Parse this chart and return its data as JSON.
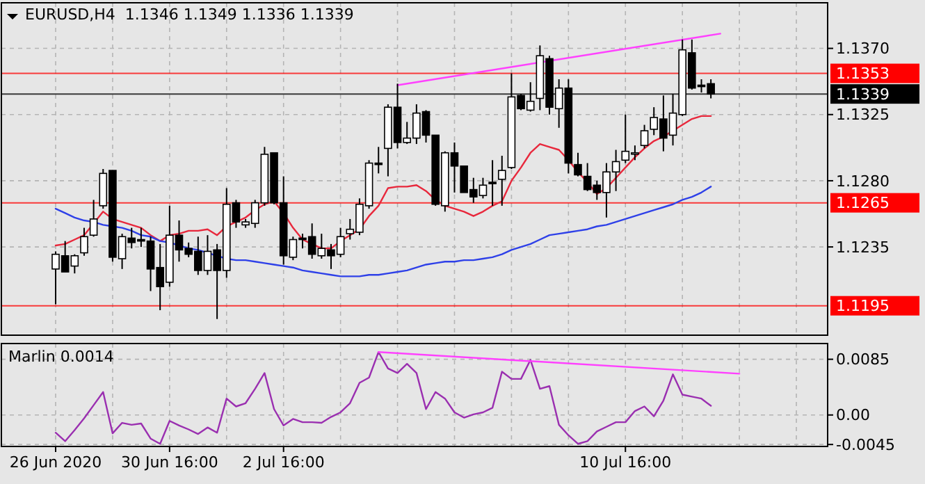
{
  "chart_data": [
    {
      "type": "candlestick",
      "title": "EURUSD,H4  1.1346 1.1349 1.1336 1.1339",
      "categories": [
        null,
        null,
        null,
        null,
        null,
        null,
        null,
        null,
        null,
        null,
        null,
        null,
        null,
        null,
        null,
        null,
        null,
        null,
        null,
        null,
        null,
        null,
        null,
        null,
        null,
        null,
        null,
        null,
        null,
        null,
        null,
        null,
        null,
        null,
        null,
        null,
        null,
        null,
        null,
        null,
        null,
        null,
        null,
        null,
        null,
        null,
        null,
        null,
        null,
        null,
        null,
        null,
        null,
        null,
        null,
        null,
        null,
        null,
        null,
        null,
        null,
        null,
        null,
        null,
        null,
        null,
        null,
        null,
        null,
        null,
        null,
        null,
        null,
        null,
        null,
        null,
        null,
        null,
        null,
        null,
        null,
        null
      ],
      "ohlc": [
        [
          1.122,
          1.1232,
          1.1196,
          1.123
        ],
        [
          1.1229,
          1.1239,
          1.1218,
          1.1218
        ],
        [
          1.1222,
          1.123,
          1.1217,
          1.1229
        ],
        [
          1.1231,
          1.1248,
          1.1229,
          1.1242
        ],
        [
          1.1243,
          1.1267,
          1.1242,
          1.1254
        ],
        [
          1.1263,
          1.1288,
          1.1261,
          1.1285
        ],
        [
          1.1287,
          1.1287,
          1.1225,
          1.1228
        ],
        [
          1.1227,
          1.1244,
          1.122,
          1.1242
        ],
        [
          1.1241,
          1.1248,
          1.1234,
          1.1238
        ],
        [
          1.124,
          1.1248,
          1.1235,
          1.1239
        ],
        [
          1.1239,
          1.1242,
          1.1205,
          1.122
        ],
        [
          1.1221,
          1.1237,
          1.1192,
          1.1208
        ],
        [
          1.1211,
          1.1263,
          1.1208,
          1.1243
        ],
        [
          1.1243,
          1.1253,
          1.1225,
          1.1233
        ],
        [
          1.1234,
          1.1238,
          1.1228,
          1.123
        ],
        [
          1.1232,
          1.1242,
          1.1216,
          1.1219
        ],
        [
          1.1219,
          1.1243,
          1.1216,
          1.1232
        ],
        [
          1.1233,
          1.1237,
          1.1186,
          1.1219
        ],
        [
          1.1219,
          1.1275,
          1.1214,
          1.1264
        ],
        [
          1.1265,
          1.1267,
          1.1248,
          1.1252
        ],
        [
          1.125,
          1.1254,
          1.1248,
          1.1252
        ],
        [
          1.1251,
          1.1267,
          1.1248,
          1.1265
        ],
        [
          1.1265,
          1.1303,
          1.1263,
          1.1298
        ],
        [
          1.1299,
          1.1299,
          1.1264,
          1.1265
        ],
        [
          1.1265,
          1.1283,
          1.1223,
          1.1229
        ],
        [
          1.1228,
          1.1242,
          1.1226,
          1.124
        ],
        [
          1.1241,
          1.1244,
          1.1234,
          1.124
        ],
        [
          1.1242,
          1.1251,
          1.1227,
          1.123
        ],
        [
          1.1229,
          1.1244,
          1.1227,
          1.1234
        ],
        [
          1.1233,
          1.1237,
          1.122,
          1.1229
        ],
        [
          1.123,
          1.1248,
          1.1228,
          1.1242
        ],
        [
          1.1244,
          1.1254,
          1.124,
          1.1247
        ],
        [
          1.1245,
          1.1268,
          1.1243,
          1.1264
        ],
        [
          1.1263,
          1.1294,
          1.1261,
          1.1292
        ],
        [
          1.1292,
          1.1303,
          1.1285,
          1.1291
        ],
        [
          1.1302,
          1.1332,
          1.1283,
          1.133
        ],
        [
          1.133,
          1.1346,
          1.1302,
          1.1306
        ],
        [
          1.1306,
          1.132,
          1.1305,
          1.1309
        ],
        [
          1.1309,
          1.1332,
          1.1305,
          1.1326
        ],
        [
          1.1327,
          1.1328,
          1.1306,
          1.1311
        ],
        [
          1.1311,
          1.1311,
          1.1263,
          1.1264
        ],
        [
          1.1263,
          1.13,
          1.1259,
          1.1299
        ],
        [
          1.1299,
          1.1306,
          1.1272,
          1.129
        ],
        [
          1.129,
          1.129,
          1.1272,
          1.1272
        ],
        [
          1.1274,
          1.1282,
          1.1265,
          1.1269
        ],
        [
          1.127,
          1.1282,
          1.1268,
          1.1277
        ],
        [
          1.1279,
          1.1294,
          1.1263,
          1.1278
        ],
        [
          1.1281,
          1.1297,
          1.1263,
          1.1287
        ],
        [
          1.1289,
          1.1353,
          1.1288,
          1.1337
        ],
        [
          1.1338,
          1.1339,
          1.1328,
          1.1329
        ],
        [
          1.1328,
          1.1347,
          1.1327,
          1.1334
        ],
        [
          1.1336,
          1.1372,
          1.1328,
          1.1365
        ],
        [
          1.1363,
          1.1365,
          1.1325,
          1.133
        ],
        [
          1.1329,
          1.1349,
          1.1316,
          1.1343
        ],
        [
          1.1343,
          1.1349,
          1.1285,
          1.1292
        ],
        [
          1.1291,
          1.1299,
          1.1283,
          1.1284
        ],
        [
          1.1283,
          1.1292,
          1.1273,
          1.1274
        ],
        [
          1.1277,
          1.128,
          1.1267,
          1.1272
        ],
        [
          1.1272,
          1.1292,
          1.1255,
          1.1286
        ],
        [
          1.1286,
          1.1301,
          1.1273,
          1.1293
        ],
        [
          1.1294,
          1.1325,
          1.1292,
          1.13
        ],
        [
          1.1299,
          1.1304,
          1.1294,
          1.1299
        ],
        [
          1.1304,
          1.1318,
          1.1302,
          1.1314
        ],
        [
          1.1315,
          1.133,
          1.1311,
          1.1323
        ],
        [
          1.1322,
          1.1338,
          1.13,
          1.1309
        ],
        [
          1.1311,
          1.1339,
          1.1304,
          1.1326
        ],
        [
          1.1325,
          1.1376,
          1.1324,
          1.1369
        ],
        [
          1.1367,
          1.1376,
          1.1342,
          1.1343
        ],
        [
          1.1345,
          1.1349,
          1.134,
          1.1344
        ],
        [
          1.1346,
          1.1349,
          1.1336,
          1.1339
        ],
        null,
        null,
        null,
        null,
        null,
        null,
        null,
        null,
        null,
        null,
        null,
        null
      ],
      "series": [
        {
          "type": "line",
          "color": "#e8283c",
          "values": [
            1.1236,
            1.1237,
            1.124,
            1.1243,
            1.1251,
            1.1259,
            1.1254,
            1.1252,
            1.125,
            1.1248,
            1.1243,
            1.1239,
            1.1243,
            1.1244,
            1.1246,
            1.1246,
            1.1247,
            1.1243,
            1.1249,
            1.1252,
            1.1255,
            1.126,
            1.1264,
            1.1266,
            1.1258,
            1.1248,
            1.124,
            1.1237,
            1.1234,
            1.1234,
            1.1239,
            1.1243,
            1.1247,
            1.1256,
            1.1263,
            1.1275,
            1.1276,
            1.1276,
            1.1277,
            1.1273,
            1.1267,
            1.1263,
            1.1261,
            1.1259,
            1.1256,
            1.1259,
            1.1263,
            1.1266,
            1.128,
            1.1289,
            1.1299,
            1.1305,
            1.1303,
            1.1301,
            1.1294,
            1.1286,
            1.1279,
            1.1271,
            1.1275,
            1.1282,
            1.1289,
            1.1296,
            1.1302,
            1.1307,
            1.131,
            1.1314,
            1.1318,
            1.1322,
            1.1324,
            1.1324,
            null,
            null,
            null,
            null,
            null,
            null,
            null,
            null,
            null,
            null,
            null,
            null
          ]
        },
        {
          "type": "line",
          "color": "#2e40e8",
          "values": [
            1.1261,
            1.1258,
            1.1255,
            1.1253,
            1.1252,
            1.125,
            1.1249,
            1.1248,
            1.1246,
            1.1243,
            1.1242,
            1.1239,
            1.1238,
            1.1236,
            1.1234,
            1.1233,
            1.1231,
            1.1229,
            1.1227,
            1.1226,
            1.1226,
            1.1225,
            1.1224,
            1.1223,
            1.1222,
            1.1221,
            1.1219,
            1.1218,
            1.1217,
            1.1216,
            1.1215,
            1.1215,
            1.1215,
            1.1216,
            1.1216,
            1.1217,
            1.1218,
            1.1219,
            1.1221,
            1.1223,
            1.1224,
            1.1225,
            1.1225,
            1.1226,
            1.1226,
            1.1227,
            1.1228,
            1.123,
            1.1233,
            1.1235,
            1.1237,
            1.124,
            1.1243,
            1.1244,
            1.1245,
            1.1246,
            1.1247,
            1.1249,
            1.125,
            1.1252,
            1.1254,
            1.1256,
            1.1258,
            1.126,
            1.1262,
            1.1264,
            1.1267,
            1.1269,
            1.1272,
            1.1276,
            null,
            null,
            null,
            null,
            null,
            null,
            null,
            null,
            null,
            null,
            null,
            null
          ]
        },
        {
          "type": "line",
          "color": "#ff40ff",
          "values": [
            null,
            null,
            null,
            null,
            null,
            null,
            null,
            null,
            null,
            null,
            null,
            null,
            null,
            null,
            null,
            null,
            null,
            null,
            null,
            null,
            null,
            null,
            null,
            null,
            null,
            null,
            null,
            null,
            null,
            null,
            null,
            null,
            null,
            null,
            null,
            null,
            1.1345,
            null,
            null,
            null,
            null,
            null,
            null,
            null,
            null,
            null,
            null,
            null,
            null,
            null,
            null,
            null,
            null,
            null,
            null,
            null,
            null,
            null,
            null,
            null,
            null,
            null,
            null,
            null,
            null,
            null,
            null,
            null,
            null,
            null,
            1.138,
            null,
            null,
            null,
            null,
            null,
            null,
            null,
            null,
            null,
            null,
            null
          ]
        }
      ],
      "ylim": [
        1.1175,
        1.1401
      ],
      "yticks": [
        {
          "value": 1.137,
          "label": "1.1370"
        },
        1.1325,
        {
          "value": 1.128,
          "label": "1.1280"
        },
        1.1235
      ],
      "ref_lines": [
        {
          "axis": "y",
          "value": 1.1353,
          "label": "1.1353",
          "color": "#ff0000"
        },
        {
          "axis": "y",
          "value": 1.1265,
          "label": "1.1265",
          "color": "#ff0000"
        },
        {
          "axis": "y",
          "value": 1.1195,
          "label": "1.1195",
          "color": "#ff0000"
        },
        {
          "axis": "y",
          "value": 1.1339,
          "label": "1.1339",
          "color": "#000000"
        }
      ],
      "grid": true
    },
    {
      "type": "line",
      "title": "Marlin 0.0014",
      "categories": [
        "26 Jun 2020",
        null,
        null,
        null,
        null,
        null,
        null,
        null,
        null,
        null,
        null,
        null,
        "30 Jun 16:00",
        null,
        null,
        null,
        null,
        null,
        null,
        null,
        null,
        null,
        null,
        null,
        "2 Jul 16:00",
        null,
        null,
        null,
        null,
        null,
        null,
        null,
        null,
        null,
        null,
        null,
        null,
        null,
        null,
        null,
        null,
        null,
        null,
        null,
        null,
        null,
        null,
        null,
        null,
        null,
        null,
        null,
        null,
        null,
        null,
        null,
        null,
        null,
        null,
        null,
        "10 Jul 16:00",
        null,
        null,
        null,
        null,
        null,
        null,
        null,
        null,
        null,
        null,
        null,
        null,
        null,
        null,
        null,
        null,
        null,
        null,
        null,
        null,
        null
      ],
      "series": [
        {
          "color": "#9a2fb0",
          "values": [
            -0.0027,
            -0.004,
            -0.0023,
            -0.0005,
            0.0015,
            0.0035,
            -0.0028,
            -0.0012,
            -0.0015,
            -0.0013,
            -0.0036,
            -0.0044,
            -0.0009,
            -0.0016,
            -0.0022,
            -0.0029,
            -0.0019,
            -0.0027,
            0.0025,
            0.0013,
            0.0018,
            0.004,
            0.0064,
            0.0009,
            -0.0016,
            -0.0006,
            -0.0011,
            -0.0011,
            -0.0012,
            -0.0003,
            0.0004,
            0.0018,
            0.0049,
            0.0057,
            0.0096,
            0.0071,
            0.0064,
            0.0078,
            0.0064,
            0.0009,
            0.0035,
            0.0025,
            0.0004,
            -0.0004,
            0.0001,
            0.0004,
            0.0011,
            0.0066,
            0.0055,
            0.0055,
            0.0084,
            0.004,
            0.0044,
            -0.0015,
            -0.0031,
            -0.0044,
            -0.004,
            -0.0025,
            -0.0018,
            -0.0011,
            -0.0011,
            0.0006,
            0.0013,
            -0.0002,
            0.0022,
            0.0062,
            0.0031,
            0.0028,
            0.0025,
            0.0014,
            null,
            null,
            null,
            null,
            null,
            null,
            null,
            null,
            null,
            null,
            null,
            null
          ]
        },
        {
          "color": "#ff40ff",
          "values": [
            null,
            null,
            null,
            null,
            null,
            null,
            null,
            null,
            null,
            null,
            null,
            null,
            null,
            null,
            null,
            null,
            null,
            null,
            null,
            null,
            null,
            null,
            null,
            null,
            null,
            null,
            null,
            null,
            null,
            null,
            null,
            null,
            null,
            null,
            0.0096,
            null,
            null,
            null,
            null,
            null,
            null,
            null,
            null,
            null,
            null,
            null,
            null,
            null,
            null,
            null,
            null,
            null,
            null,
            null,
            null,
            null,
            null,
            null,
            null,
            null,
            null,
            null,
            null,
            null,
            null,
            null,
            null,
            null,
            null,
            null,
            null,
            null,
            0.0063,
            null,
            null,
            null,
            null,
            null,
            null,
            null,
            null,
            null
          ]
        }
      ],
      "ylim": [
        -0.0048,
        0.0109
      ],
      "yticks": [
        0.0085,
        {
          "value": 0,
          "label": "0.00"
        },
        -0.0045
      ],
      "grid": true
    }
  ]
}
